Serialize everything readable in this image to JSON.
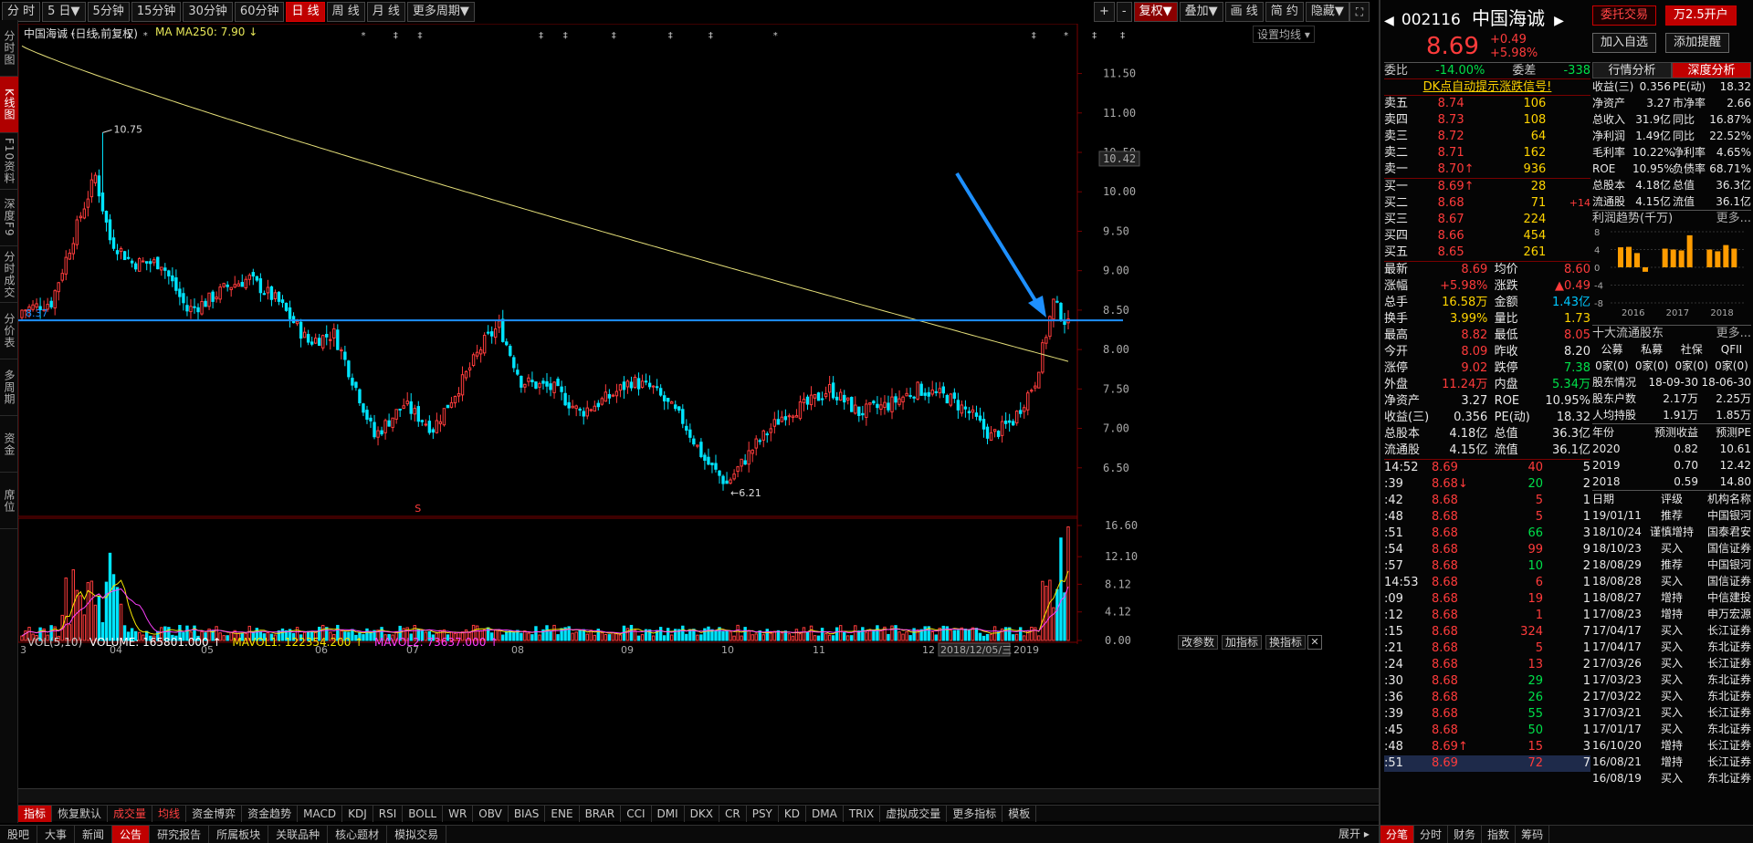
{
  "period_tabs": [
    "分 时",
    "5 日▼",
    "5分钟",
    "15分钟",
    "30分钟",
    "60分钟",
    "日 线",
    "周 线",
    "月 线",
    "更多周期▼"
  ],
  "active_period": "日 线",
  "right_tools": [
    "+",
    "-",
    "复权▼",
    "叠加▼",
    "画 线",
    "简 约",
    "隐藏▼"
  ],
  "left_tabs": [
    "分时图",
    "K线图",
    "F10资料",
    "深度F9",
    "分时成交",
    "分价表",
    "多周期",
    "资金",
    "席位"
  ],
  "chart": {
    "title": "中国海诚 (日线,前复权)",
    "ma_label": "MA  MA250: 7.90 ↓",
    "setting_btn": "设置均线 ▾",
    "high_label": "10.75",
    "low_label": "6.21",
    "line_label": "8.37",
    "price_marker": "10.42",
    "month_labels": [
      "3",
      "04",
      "05",
      "06",
      "07",
      "08",
      "09",
      "10",
      "11",
      "12",
      "2018/12/05/三",
      "2019"
    ],
    "y_ticks": [
      "11.50",
      "11.00",
      "10.50",
      "10.00",
      "9.50",
      "9.00",
      "8.50",
      "8.00",
      "7.50",
      "7.00",
      "6.50"
    ],
    "vol_header": "VOL(5,10)",
    "vol_value": "VOLUME: 165801.000 ↑",
    "mavol1": "MAVOL1: 122354.200 ↑",
    "mavol2": "MAVOL2: 73637.000 ↑",
    "vol_buttons": [
      "改参数",
      "加指标",
      "换指标"
    ],
    "vol_ticks": [
      "16.60",
      "12.10",
      "8.12",
      "4.12",
      "0.00"
    ],
    "special_mark": "S"
  },
  "indicator_tabs": [
    "指标",
    "恢复默认",
    "成交量",
    "均线",
    "资金博弈",
    "资金趋势",
    "MACD",
    "KDJ",
    "RSI",
    "BOLL",
    "WR",
    "OBV",
    "BIAS",
    "ENE",
    "BRAR",
    "CCI",
    "DMI",
    "DKX",
    "CR",
    "PSY",
    "KD",
    "DMA",
    "TRIX",
    "虚拟成交量",
    "更多指标",
    "模板"
  ],
  "bottom_tabs": [
    "股吧",
    "大事",
    "新闻",
    "公告",
    "研究报告",
    "所属板块",
    "关联品种",
    "核心题材",
    "模拟交易"
  ],
  "active_bottom": "公告",
  "stock": {
    "code": "002116",
    "name": "中国海诚",
    "price": "8.69",
    "chg": "+0.49",
    "pct": "+5.98%",
    "btn_trade": "委托交易",
    "btn_account": "万2.5开户",
    "btn_add": "加入自选",
    "btn_alert": "添加提醒"
  },
  "quote": {
    "webi": "委比",
    "webi_v": "-14.00%",
    "wecha": "委差",
    "wecha_v": "-338",
    "dk": "DK点自动提示涨跌信号!",
    "sells": [
      [
        "卖五",
        "8.74",
        "106"
      ],
      [
        "卖四",
        "8.73",
        "108"
      ],
      [
        "卖三",
        "8.72",
        "64"
      ],
      [
        "卖二",
        "8.71",
        "162"
      ],
      [
        "卖一",
        "8.70↑",
        "936"
      ]
    ],
    "buys": [
      [
        "买一",
        "8.69↑",
        "28",
        ""
      ],
      [
        "买二",
        "8.68",
        "71",
        "+14"
      ],
      [
        "买三",
        "8.67",
        "224",
        ""
      ],
      [
        "买四",
        "8.66",
        "454",
        ""
      ],
      [
        "买五",
        "8.65",
        "261",
        ""
      ]
    ],
    "stats": [
      [
        "最新",
        "8.69",
        "均价",
        "8.60"
      ],
      [
        "涨幅",
        "+5.98%",
        "涨跌",
        "▲0.49"
      ],
      [
        "总手",
        "16.58万",
        "金额",
        "1.43亿"
      ],
      [
        "换手",
        "3.99%",
        "量比",
        "1.73"
      ],
      [
        "最高",
        "8.82",
        "最低",
        "8.05"
      ],
      [
        "今开",
        "8.09",
        "昨收",
        "8.20"
      ],
      [
        "涨停",
        "9.02",
        "跌停",
        "7.38"
      ],
      [
        "外盘",
        "11.24万",
        "内盘",
        "5.34万"
      ],
      [
        "净资产",
        "3.27",
        "ROE",
        "10.95%"
      ],
      [
        "收益(三)",
        "0.356",
        "PE(动)",
        "18.32"
      ],
      [
        "总股本",
        "4.18亿",
        "总值",
        "36.3亿"
      ],
      [
        "流通股",
        "4.15亿",
        "流值",
        "36.1亿"
      ]
    ],
    "ticks": [
      [
        "14:52",
        "8.69",
        "40",
        "5"
      ],
      [
        ":39",
        "8.68↓",
        "20",
        "2"
      ],
      [
        ":42",
        "8.68",
        "5",
        "1"
      ],
      [
        ":48",
        "8.68",
        "5",
        "1"
      ],
      [
        ":51",
        "8.68",
        "66",
        "3"
      ],
      [
        ":54",
        "8.68",
        "99",
        "9"
      ],
      [
        ":57",
        "8.68",
        "10",
        "2"
      ],
      [
        "14:53",
        "8.68",
        "6",
        "1"
      ],
      [
        ":09",
        "8.68",
        "19",
        "1"
      ],
      [
        ":12",
        "8.68",
        "1",
        "1"
      ],
      [
        ":15",
        "8.68",
        "324",
        "7"
      ],
      [
        ":21",
        "8.68",
        "5",
        "1"
      ],
      [
        ":24",
        "8.68",
        "13",
        "2"
      ],
      [
        ":30",
        "8.68",
        "29",
        "1"
      ],
      [
        ":36",
        "8.68",
        "26",
        "2"
      ],
      [
        ":39",
        "8.68",
        "55",
        "3"
      ],
      [
        ":45",
        "8.68",
        "50",
        "1"
      ],
      [
        ":48",
        "8.69↑",
        "15",
        "3"
      ],
      [
        ":51",
        "8.69",
        "72",
        "7"
      ]
    ]
  },
  "deep": {
    "tab1": "行情分析",
    "tab2": "深度分析",
    "fin": [
      [
        "收益(三)",
        "0.356",
        "PE(动)",
        "18.32"
      ],
      [
        "净资产",
        "3.27",
        "市净率",
        "2.66"
      ],
      [
        "总收入",
        "31.9亿",
        "同比",
        "16.87%"
      ],
      [
        "净利润",
        "1.49亿",
        "同比",
        "22.52%"
      ],
      [
        "毛利率",
        "10.22%",
        "净利率",
        "4.65%"
      ],
      [
        "ROE",
        "10.95%",
        "负债率",
        "68.71%"
      ],
      [
        "总股本",
        "4.18亿",
        "总值",
        "36.3亿"
      ],
      [
        "流通股",
        "4.15亿",
        "流值",
        "36.1亿"
      ]
    ],
    "profit_title": "利润趋势(千万)",
    "more": "更多...",
    "profit_y": [
      "8",
      "4",
      "0",
      "-4",
      "-8"
    ],
    "profit_x": [
      "2016",
      "2017",
      "2018"
    ],
    "profit_values": [
      4.5,
      4.6,
      3.2,
      -1.0,
      4.2,
      4.0,
      3.8,
      7.2,
      4.0,
      3.6,
      5.0,
      4.2
    ],
    "holders_title": "十大流通股东",
    "holders_head": [
      "公募",
      "私募",
      "社保",
      "QFII"
    ],
    "holders_vals": [
      "0家(0)",
      "0家(0)",
      "0家(0)",
      "0家(0)"
    ],
    "holders": [
      [
        "股东情况",
        "18-09-30",
        "18-06-30"
      ],
      [
        "股东户数",
        "2.17万",
        "2.25万"
      ],
      [
        "人均持股",
        "1.91万",
        "1.85万"
      ]
    ],
    "forecast_head": [
      "年份",
      "预测收益",
      "预测PE"
    ],
    "forecast": [
      [
        "2020",
        "0.82",
        "10.61"
      ],
      [
        "2019",
        "0.70",
        "12.42"
      ],
      [
        "2018",
        "0.59",
        "14.80"
      ]
    ],
    "rating_head": [
      "日期",
      "评级",
      "机构名称"
    ],
    "ratings": [
      [
        "19/01/11",
        "推荐",
        "中国银河"
      ],
      [
        "18/10/24",
        "谨慎增持",
        "国泰君安"
      ],
      [
        "18/10/23",
        "买入",
        "国信证券"
      ],
      [
        "18/08/29",
        "推荐",
        "中国银河"
      ],
      [
        "18/08/28",
        "买入",
        "国信证券"
      ],
      [
        "18/08/27",
        "增持",
        "中信建投"
      ],
      [
        "17/08/23",
        "增持",
        "申万宏源"
      ],
      [
        "17/04/17",
        "买入",
        "长江证券"
      ],
      [
        "17/04/17",
        "买入",
        "东北证券"
      ],
      [
        "17/03/26",
        "买入",
        "长江证券"
      ],
      [
        "17/03/23",
        "买入",
        "东北证券"
      ],
      [
        "17/03/22",
        "买入",
        "东北证券"
      ],
      [
        "17/03/21",
        "买入",
        "长江证券"
      ],
      [
        "17/01/17",
        "买入",
        "东北证券"
      ],
      [
        "16/10/20",
        "增持",
        "长江证券"
      ],
      [
        "16/08/21",
        "增持",
        "长江证券"
      ],
      [
        "16/08/19",
        "买入",
        "东北证券"
      ]
    ]
  },
  "right_bottom_tabs": [
    "分笔",
    "分时",
    "财务",
    "指数",
    "筹码"
  ]
}
